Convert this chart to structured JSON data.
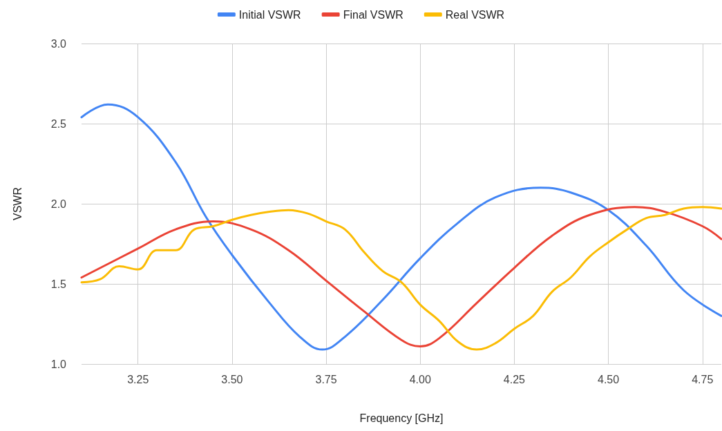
{
  "chart_data": {
    "type": "line",
    "xlabel": "Frequency [GHz]",
    "ylabel": "VSWR",
    "xlim": [
      3.1,
      4.8
    ],
    "xticks": [
      3.25,
      {
        "value": 3.5,
        "label": "3.50"
      },
      3.75,
      {
        "value": 4.0,
        "label": "4.00"
      },
      4.25,
      {
        "value": 4.5,
        "label": "4.50"
      },
      4.75
    ],
    "ylim": [
      1.0,
      3.0
    ],
    "yticks": [
      {
        "value": 1.0,
        "label": "1.0"
      },
      1.5,
      {
        "value": 2.0,
        "label": "2.0"
      },
      2.5,
      {
        "value": 3.0,
        "label": "3.0"
      }
    ],
    "grid": true,
    "legend": "top",
    "marker": "none",
    "line_style": "solid",
    "series": [
      {
        "name": "Initial VSWR",
        "color": "#4285f4",
        "x": [
          3.1,
          3.17,
          3.25,
          3.35,
          3.43,
          3.5,
          3.6,
          3.68,
          3.74,
          3.8,
          3.9,
          4.0,
          4.1,
          4.2,
          4.32,
          4.4,
          4.5,
          4.6,
          4.7,
          4.8
        ],
        "values": [
          2.54,
          2.62,
          2.54,
          2.26,
          1.92,
          1.68,
          1.38,
          1.17,
          1.09,
          1.17,
          1.4,
          1.66,
          1.88,
          2.04,
          2.1,
          2.07,
          1.96,
          1.74,
          1.46,
          1.3
        ]
      },
      {
        "name": "Final VSWR",
        "color": "#ea4335",
        "x": [
          3.1,
          3.25,
          3.35,
          3.45,
          3.55,
          3.65,
          3.75,
          3.85,
          3.95,
          4.0,
          4.05,
          4.15,
          4.25,
          4.35,
          4.45,
          4.57,
          4.65,
          4.75,
          4.8
        ],
        "values": [
          1.54,
          1.72,
          1.84,
          1.89,
          1.84,
          1.71,
          1.52,
          1.33,
          1.15,
          1.11,
          1.16,
          1.38,
          1.6,
          1.8,
          1.93,
          1.98,
          1.95,
          1.86,
          1.78
        ]
      },
      {
        "name": "Real VSWR",
        "color": "#fbbc04",
        "x": [
          3.1,
          3.15,
          3.2,
          3.25,
          3.3,
          3.35,
          3.4,
          3.45,
          3.5,
          3.55,
          3.6,
          3.65,
          3.7,
          3.75,
          3.8,
          3.85,
          3.9,
          3.95,
          4.0,
          4.05,
          4.1,
          4.15,
          4.2,
          4.25,
          4.3,
          4.35,
          4.4,
          4.45,
          4.5,
          4.55,
          4.6,
          4.65,
          4.7,
          4.75,
          4.8
        ],
        "values": [
          1.51,
          1.53,
          1.61,
          1.59,
          1.71,
          1.71,
          1.84,
          1.86,
          1.9,
          1.93,
          1.95,
          1.96,
          1.94,
          1.89,
          1.84,
          1.7,
          1.58,
          1.51,
          1.37,
          1.27,
          1.14,
          1.09,
          1.13,
          1.22,
          1.3,
          1.45,
          1.54,
          1.67,
          1.76,
          1.84,
          1.91,
          1.93,
          1.97,
          1.98,
          1.97
        ]
      }
    ]
  }
}
